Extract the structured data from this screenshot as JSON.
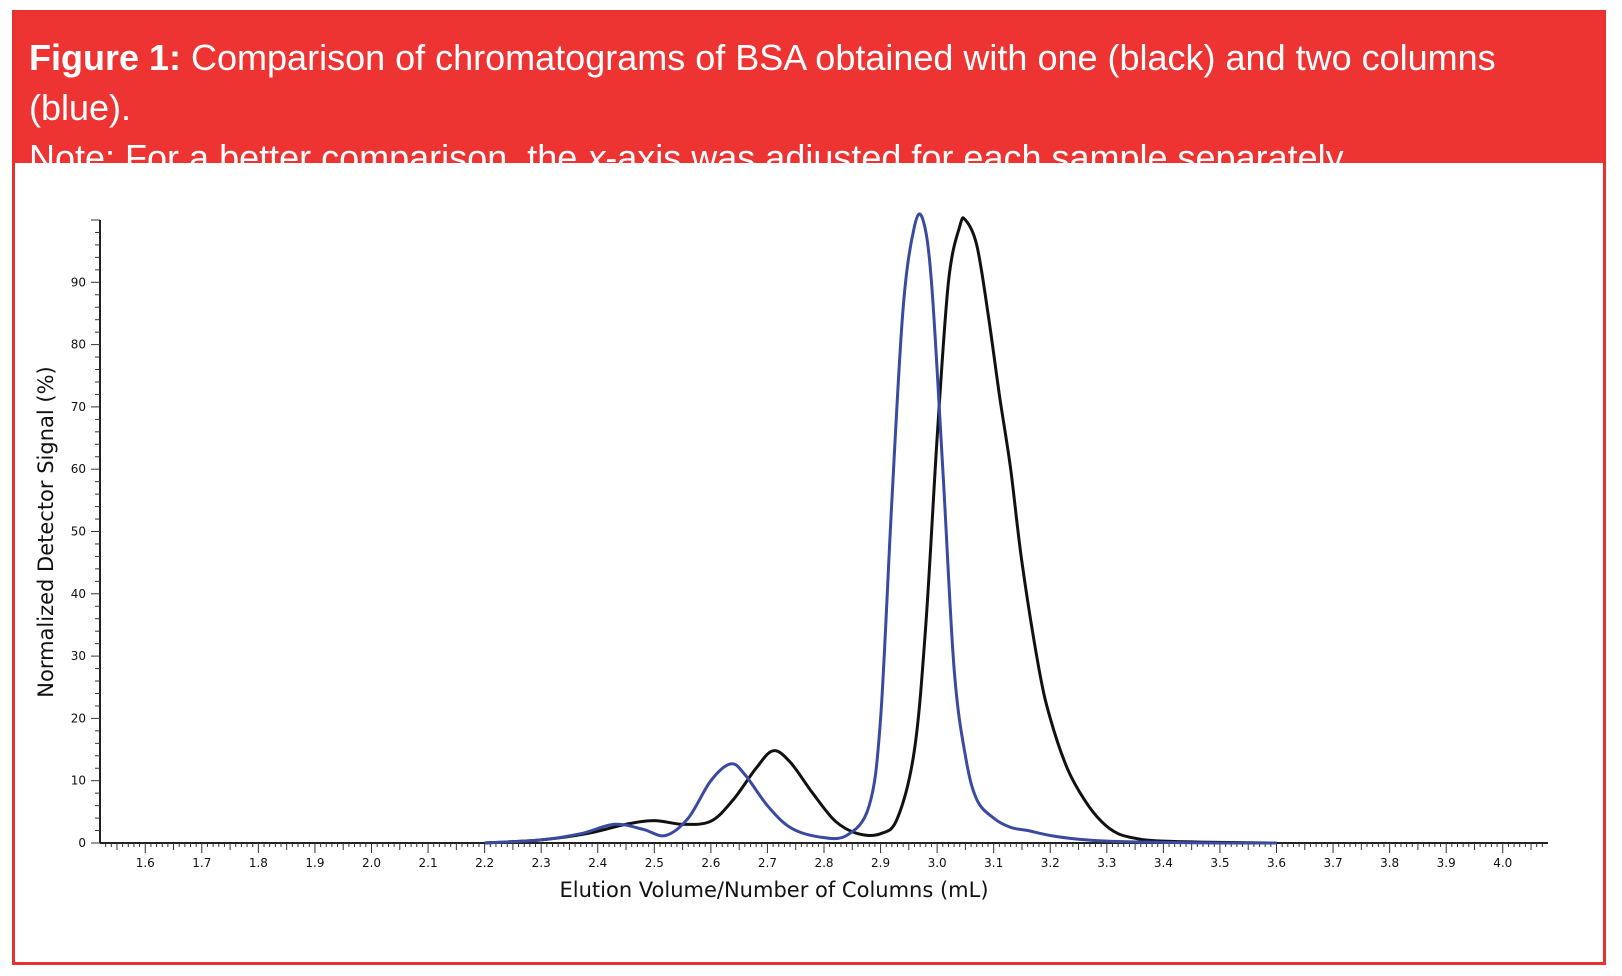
{
  "caption": {
    "label": "Figure 1:",
    "line1_text": "Comparison of chromatograms of BSA obtained with one (black) and two columns (blue).",
    "line2_before": "Note: For a better comparison, the ",
    "line2_var": "x",
    "line2_after": "-axis was adjusted for each sample separately."
  },
  "colors": {
    "accent": "#ee3333",
    "series_one_column": "#111111",
    "series_two_columns": "#3a4aa0"
  },
  "chart_data": {
    "type": "line",
    "title": "",
    "xlabel": "Elution Volume/Number of Columns (mL)",
    "ylabel": "Normalized Detector Signal (%)",
    "xlim": [
      1.52,
      4.08
    ],
    "ylim": [
      0,
      100
    ],
    "x_ticks": [
      "1.6",
      "1.7",
      "1.8",
      "1.9",
      "2.0",
      "2.1",
      "2.2",
      "2.3",
      "2.4",
      "2.5",
      "2.6",
      "2.7",
      "2.8",
      "2.9",
      "3.0",
      "3.1",
      "3.2",
      "3.3",
      "3.4",
      "3.5",
      "3.6",
      "3.7",
      "3.8",
      "3.9",
      "4.0"
    ],
    "y_ticks": [
      "0",
      "10",
      "20",
      "30",
      "40",
      "50",
      "60",
      "70",
      "80",
      "90"
    ],
    "grid": false,
    "series": [
      {
        "color": "black",
        "x": [
          2.2,
          2.3,
          2.38,
          2.45,
          2.5,
          2.55,
          2.6,
          2.64,
          2.68,
          2.71,
          2.74,
          2.78,
          2.82,
          2.86,
          2.9,
          2.93,
          2.96,
          2.98,
          3.0,
          3.02,
          3.04,
          3.05,
          3.07,
          3.09,
          3.11,
          3.13,
          3.15,
          3.18,
          3.2,
          3.23,
          3.26,
          3.29,
          3.32,
          3.36,
          3.4,
          3.5,
          3.6
        ],
        "y": [
          0,
          0.5,
          1.5,
          3,
          3.6,
          3,
          3.5,
          7,
          12,
          14.8,
          13,
          8,
          3.5,
          1.5,
          1.5,
          4,
          15,
          35,
          65,
          90,
          99,
          100,
          96,
          85,
          72,
          60,
          45,
          28,
          20,
          12,
          7,
          3.5,
          1.5,
          0.6,
          0.3,
          0.1,
          0
        ]
      },
      {
        "color": "blue",
        "x": [
          2.2,
          2.3,
          2.37,
          2.43,
          2.48,
          2.52,
          2.56,
          2.6,
          2.635,
          2.66,
          2.7,
          2.74,
          2.79,
          2.84,
          2.88,
          2.9,
          2.92,
          2.94,
          2.96,
          2.975,
          2.99,
          3.01,
          3.03,
          3.05,
          3.07,
          3.1,
          3.13,
          3.16,
          3.2,
          3.25,
          3.3,
          3.4,
          3.5,
          3.6
        ],
        "y": [
          0,
          0.5,
          1.5,
          3,
          2.2,
          1.2,
          4,
          10,
          12.7,
          11,
          6,
          2.5,
          1,
          1.2,
          6,
          20,
          55,
          86,
          99,
          100,
          90,
          60,
          28,
          14,
          7,
          4,
          2.5,
          2,
          1.2,
          0.6,
          0.3,
          0.1,
          0,
          0
        ]
      }
    ]
  }
}
